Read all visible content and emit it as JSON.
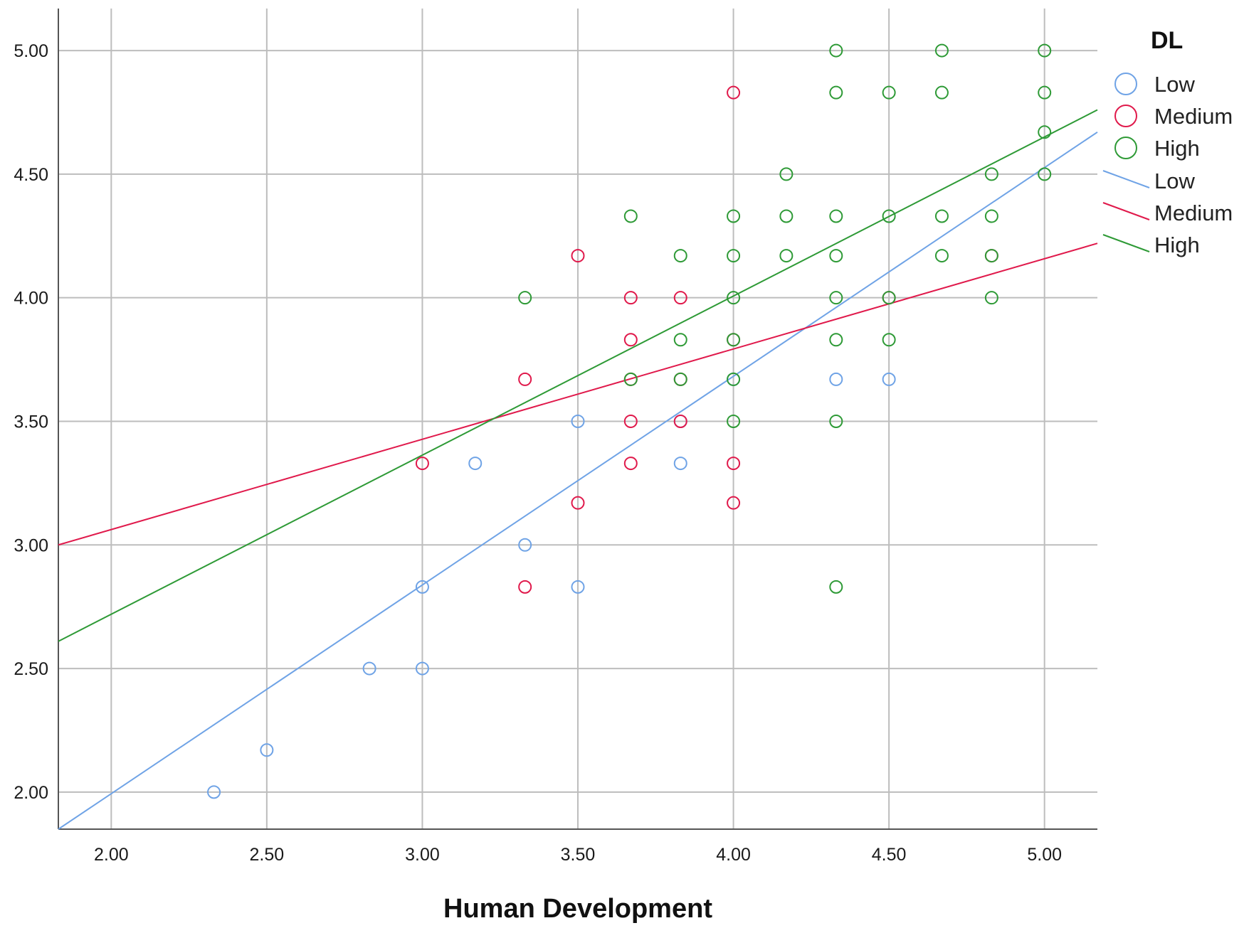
{
  "chart_data": {
    "type": "scatter",
    "title": "",
    "xlabel": "Human Development",
    "ylabel": "",
    "xlim": [
      1.83,
      5.17
    ],
    "ylim": [
      1.85,
      5.17
    ],
    "x_ticks": [
      "2.00",
      "2.50",
      "3.00",
      "3.50",
      "4.00",
      "4.50",
      "5.00"
    ],
    "y_ticks": [
      "2.00",
      "2.50",
      "3.00",
      "3.50",
      "4.00",
      "4.50",
      "5.00"
    ],
    "grid": true,
    "legend_title": "DL",
    "legend_position": "top-right",
    "series": [
      {
        "name": "Low",
        "color": "#6fa3e6",
        "points": [
          [
            2.33,
            2.0
          ],
          [
            2.5,
            2.17
          ],
          [
            2.83,
            2.5
          ],
          [
            3.0,
            2.5
          ],
          [
            3.0,
            2.83
          ],
          [
            3.17,
            3.33
          ],
          [
            3.33,
            3.0
          ],
          [
            3.5,
            2.83
          ],
          [
            3.5,
            3.5
          ],
          [
            3.83,
            3.33
          ],
          [
            3.83,
            3.5
          ],
          [
            4.0,
            3.67
          ],
          [
            4.33,
            3.67
          ],
          [
            4.5,
            3.67
          ]
        ],
        "fit": [
          [
            1.83,
            1.85
          ],
          [
            5.17,
            4.67
          ]
        ]
      },
      {
        "name": "Medium",
        "color": "#e0194b",
        "points": [
          [
            3.0,
            3.33
          ],
          [
            3.33,
            2.83
          ],
          [
            3.33,
            3.67
          ],
          [
            3.5,
            4.17
          ],
          [
            3.5,
            3.17
          ],
          [
            3.67,
            4.0
          ],
          [
            3.67,
            3.83
          ],
          [
            3.67,
            3.5
          ],
          [
            3.67,
            3.33
          ],
          [
            3.83,
            4.0
          ],
          [
            3.83,
            3.5
          ],
          [
            4.0,
            4.83
          ],
          [
            4.0,
            3.33
          ],
          [
            4.0,
            3.17
          ],
          [
            4.0,
            3.83
          ],
          [
            3.67,
            3.67
          ],
          [
            3.83,
            3.67
          ],
          [
            4.5,
            4.0
          ],
          [
            4.83,
            4.17
          ]
        ],
        "fit": [
          [
            1.83,
            3.0
          ],
          [
            5.17,
            4.22
          ]
        ]
      },
      {
        "name": "High",
        "color": "#2e9a36",
        "points": [
          [
            3.33,
            4.0
          ],
          [
            3.67,
            4.33
          ],
          [
            3.67,
            3.67
          ],
          [
            3.83,
            4.17
          ],
          [
            3.83,
            3.83
          ],
          [
            3.83,
            3.67
          ],
          [
            4.0,
            4.33
          ],
          [
            4.0,
            4.17
          ],
          [
            4.0,
            4.0
          ],
          [
            4.0,
            3.83
          ],
          [
            4.0,
            3.67
          ],
          [
            4.0,
            3.5
          ],
          [
            4.17,
            4.5
          ],
          [
            4.17,
            4.33
          ],
          [
            4.17,
            4.17
          ],
          [
            4.33,
            5.0
          ],
          [
            4.33,
            4.83
          ],
          [
            4.33,
            4.33
          ],
          [
            4.33,
            4.17
          ],
          [
            4.33,
            4.0
          ],
          [
            4.33,
            3.83
          ],
          [
            4.33,
            3.5
          ],
          [
            4.33,
            2.83
          ],
          [
            4.5,
            4.83
          ],
          [
            4.5,
            4.33
          ],
          [
            4.5,
            4.0
          ],
          [
            4.5,
            3.83
          ],
          [
            4.67,
            5.0
          ],
          [
            4.67,
            4.83
          ],
          [
            4.67,
            4.33
          ],
          [
            4.67,
            4.17
          ],
          [
            4.83,
            4.5
          ],
          [
            4.83,
            4.33
          ],
          [
            4.83,
            4.17
          ],
          [
            4.83,
            4.0
          ],
          [
            5.0,
            5.0
          ],
          [
            5.0,
            4.83
          ],
          [
            5.0,
            4.67
          ],
          [
            5.0,
            4.5
          ]
        ],
        "fit": [
          [
            1.83,
            2.61
          ],
          [
            5.17,
            4.76
          ]
        ]
      }
    ]
  }
}
